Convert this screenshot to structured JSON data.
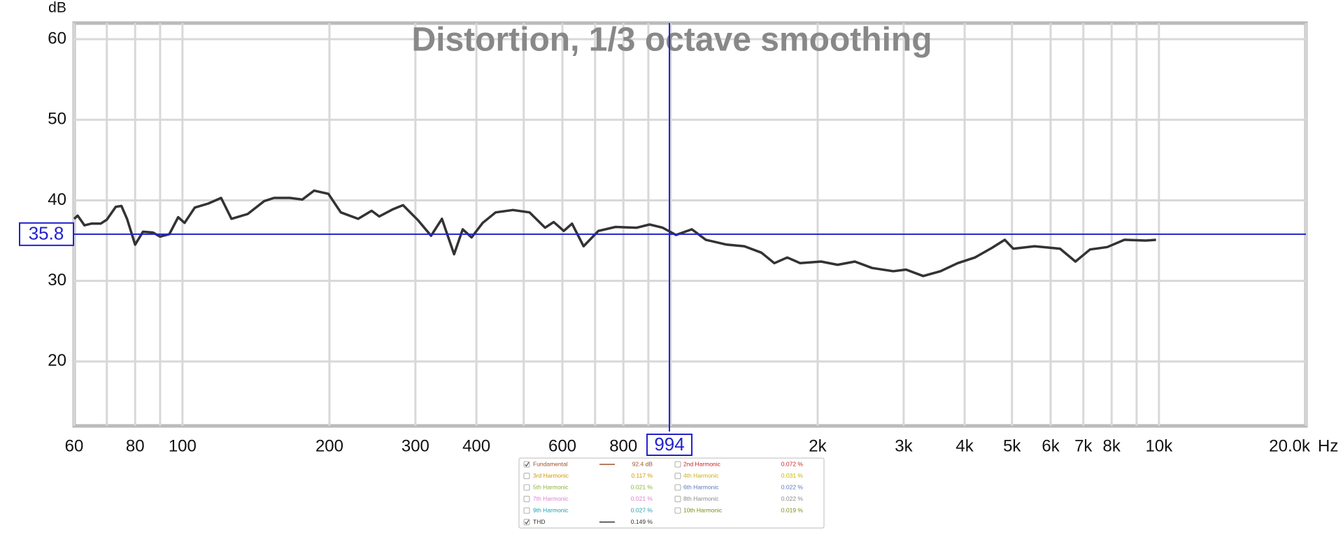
{
  "chart_data": {
    "type": "line",
    "title": "Distortion, 1/3 octave smoothing",
    "y_label": "dB",
    "x_unit": "Hz",
    "log_x": true,
    "grid": true,
    "xlim": [
      60,
      20000
    ],
    "ylim": [
      12,
      62
    ],
    "yticks": [
      20,
      30,
      40,
      50,
      60
    ],
    "xticks": [
      60,
      80,
      100,
      200,
      300,
      400,
      600,
      800,
      {
        "value": 2000,
        "label": "2k"
      },
      {
        "value": 3000,
        "label": "3k"
      },
      {
        "value": 4000,
        "label": "4k"
      },
      {
        "value": 5000,
        "label": "5k"
      },
      {
        "value": 6000,
        "label": "6k"
      },
      {
        "value": 7000,
        "label": "7k"
      },
      {
        "value": 8000,
        "label": "8k"
      },
      {
        "value": 10000,
        "label": "10k"
      },
      {
        "value": 20000,
        "label": "20.0k"
      }
    ],
    "minor_xticks": [
      70,
      90,
      500,
      700,
      900,
      1000,
      9000
    ],
    "cursor": {
      "x": 994,
      "y": 35.8,
      "color": "#2222cc"
    },
    "x": [
      60,
      61,
      63,
      65,
      68,
      70,
      73,
      75,
      77,
      80,
      83,
      87,
      90,
      94,
      98,
      101,
      106,
      113,
      120,
      126,
      136,
      147,
      154,
      166,
      176,
      186,
      199,
      211,
      229,
      244,
      253,
      270,
      283,
      304,
      323,
      340,
      360,
      375,
      391,
      412,
      438,
      475,
      514,
      553,
      576,
      604,
      628,
      663,
      711,
      771,
      852,
      905,
      963,
      1025,
      1105,
      1180,
      1302,
      1415,
      1534,
      1630,
      1733,
      1841,
      2033,
      2197,
      2383,
      2585,
      2857,
      3034,
      3289,
      3570,
      3870,
      4198,
      4551,
      4834,
      5031,
      5563,
      6272,
      6745,
      7226,
      7834,
      8496,
      9397,
      9863
    ],
    "series": [
      {
        "name": "THD",
        "color": "#333333",
        "readout": "0.149 %",
        "values": [
          37.7,
          38.1,
          36.9,
          37.1,
          37.1,
          37.6,
          39.2,
          39.3,
          37.7,
          34.5,
          36.1,
          36.0,
          35.5,
          35.8,
          37.9,
          37.2,
          39.1,
          39.6,
          40.3,
          37.7,
          38.3,
          39.9,
          40.3,
          40.3,
          40.1,
          41.2,
          40.8,
          38.5,
          37.7,
          38.7,
          38.0,
          38.9,
          39.4,
          37.5,
          35.6,
          37.7,
          33.3,
          36.4,
          35.4,
          37.2,
          38.5,
          38.8,
          38.5,
          36.6,
          37.3,
          36.2,
          37.1,
          34.3,
          36.2,
          36.7,
          36.6,
          37.0,
          36.6,
          35.7,
          36.4,
          35.1,
          34.5,
          34.3,
          33.5,
          32.2,
          32.9,
          32.2,
          32.4,
          32.0,
          32.4,
          31.6,
          31.2,
          31.4,
          30.6,
          31.2,
          32.2,
          32.9,
          34.1,
          35.1,
          34.0,
          34.3,
          34.0,
          32.4,
          33.9,
          34.2,
          35.1,
          35.0,
          35.1
        ]
      }
    ],
    "readouts": [
      {
        "name": "Fundamental",
        "value": "92.4 dB",
        "color": "#a0522d",
        "checked": true
      },
      {
        "name": "2nd Harmonic",
        "value": "0.072 %",
        "color": "#cc2222",
        "checked": false
      },
      {
        "name": "3rd Harmonic",
        "value": "0.117 %",
        "color": "#d09a00",
        "checked": false
      },
      {
        "name": "4th Harmonic",
        "value": "0.031 %",
        "color": "#c8b400",
        "checked": false
      },
      {
        "name": "5th Harmonic",
        "value": "0.021 %",
        "color": "#8cb43c",
        "checked": false
      },
      {
        "name": "6th Harmonic",
        "value": "0.022 %",
        "color": "#5a7abe",
        "checked": false
      },
      {
        "name": "7th Harmonic",
        "value": "0.021 %",
        "color": "#e080d0",
        "checked": false
      },
      {
        "name": "8th Harmonic",
        "value": "0.022 %",
        "color": "#8a8a8a",
        "checked": false
      },
      {
        "name": "9th Harmonic",
        "value": "0.027 %",
        "color": "#20a0b0",
        "checked": false
      },
      {
        "name": "10th Harmonic",
        "value": "0.019 %",
        "color": "#7a8c10",
        "checked": false
      }
    ]
  }
}
